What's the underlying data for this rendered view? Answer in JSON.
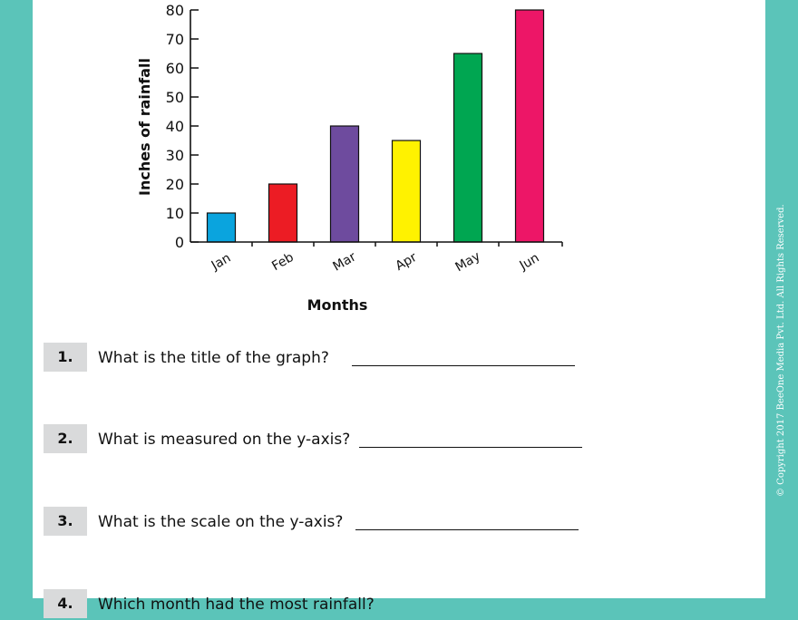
{
  "chart_data": {
    "type": "bar",
    "ylabel": "Inches of rainfall",
    "xlabel": "Months",
    "categories": [
      "Jan",
      "Feb",
      "Mar",
      "Apr",
      "May",
      "Jun"
    ],
    "values": [
      10,
      20,
      40,
      35,
      65,
      80
    ],
    "colors": [
      "#0aa4de",
      "#ec1c24",
      "#6e4b9e",
      "#fff200",
      "#00a651",
      "#ed1667"
    ],
    "yticks": [
      0,
      10,
      20,
      30,
      40,
      50,
      60,
      70,
      80
    ],
    "ylim": [
      0,
      80
    ],
    "grid": false
  },
  "questions": [
    {
      "number": "1.",
      "text": "What is the title of the graph?"
    },
    {
      "number": "2.",
      "text": "What is measured on the y-axis?"
    },
    {
      "number": "3.",
      "text": "What is the scale on the y-axis?"
    },
    {
      "number": "4.",
      "text": "Which month had the most rainfall?"
    }
  ],
  "copyright": "© Copyright 2017 BeeOne Media Pvt. Ltd. All Rights Reserved."
}
